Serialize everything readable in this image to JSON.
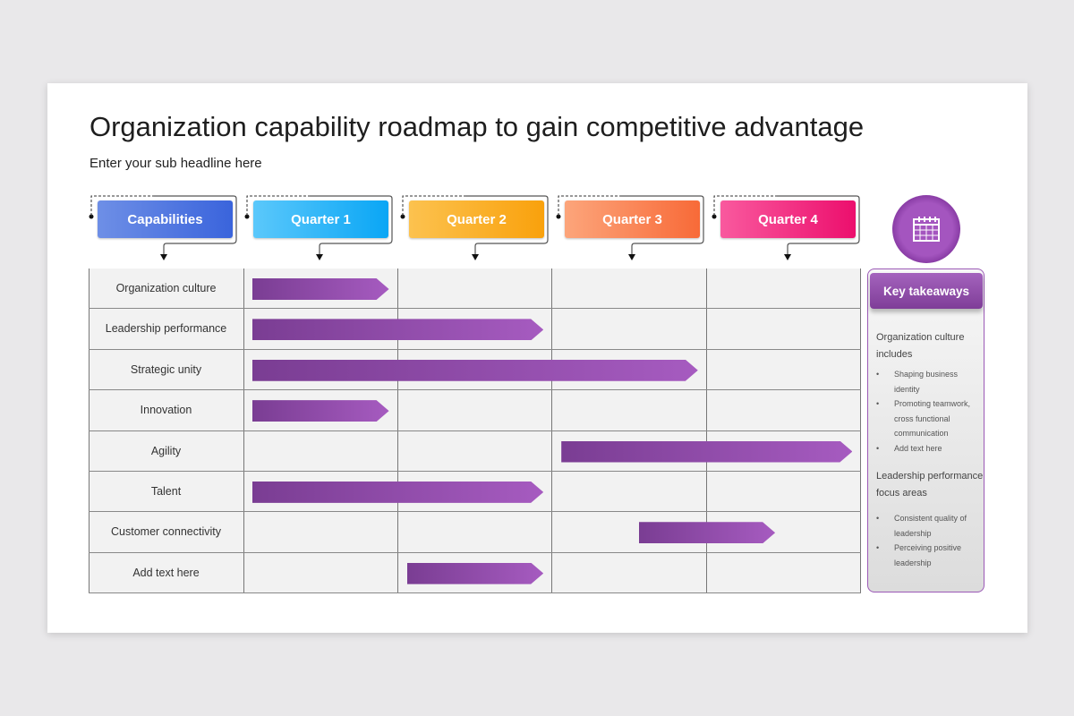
{
  "title": "Organization capability roadmap to gain competitive advantage",
  "subtitle": "Enter your sub headline here",
  "headers": [
    {
      "label": "Capabilities",
      "colors": [
        "#6e8fe6",
        "#3a64dc"
      ]
    },
    {
      "label": "Quarter 1",
      "colors": [
        "#5bc8fb",
        "#0aa6f5"
      ]
    },
    {
      "label": "Quarter 2",
      "colors": [
        "#fcc24f",
        "#f9a10c"
      ]
    },
    {
      "label": "Quarter 3",
      "colors": [
        "#fca57b",
        "#f86a38"
      ]
    },
    {
      "label": "Quarter 4",
      "colors": [
        "#f9599e",
        "#ec0f6d"
      ]
    }
  ],
  "rows": [
    {
      "label": "Organization culture",
      "start_quarter": 0,
      "end_quarter": 1
    },
    {
      "label": "Leadership performance",
      "start_quarter": 0,
      "end_quarter": 2
    },
    {
      "label": "Strategic unity",
      "start_quarter": 0,
      "end_quarter": 3
    },
    {
      "label": "Innovation",
      "start_quarter": 0,
      "end_quarter": 1
    },
    {
      "label": "Agility",
      "start_quarter": 2,
      "end_quarter": 4
    },
    {
      "label": "Talent",
      "start_quarter": 0,
      "end_quarter": 2
    },
    {
      "label": "Customer connectivity",
      "start_quarter": 2.5,
      "end_quarter": 3.5
    },
    {
      "label": "Add text here",
      "start_quarter": 1,
      "end_quarter": 2
    }
  ],
  "takeaways": {
    "icon": "calendar-icon",
    "title": "Key takeaways",
    "section1": {
      "heading": "Organization culture includes",
      "bullets": [
        "Shaping business identity",
        "Promoting teamwork, cross functional communication",
        "Add text here"
      ]
    },
    "section2": {
      "heading": "Leadership performance focus areas",
      "bullets": [
        "Consistent quality of leadership",
        "Perceiving positive leadership"
      ]
    }
  }
}
